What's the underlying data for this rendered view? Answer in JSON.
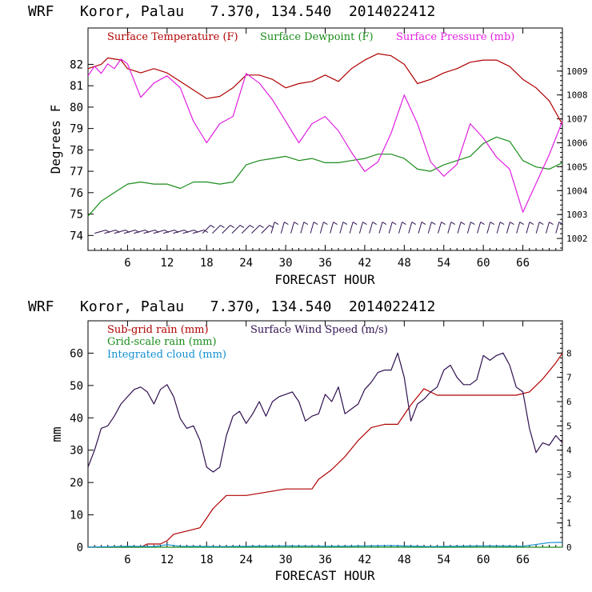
{
  "colors": {
    "temperature": "#b00000",
    "dewpoint": "#1a8c1a",
    "pressure": "#e020e0",
    "wind": "#301050",
    "wind_barbs": "#301050",
    "subgrid_rain": "#b00000",
    "gridscale_rain": "#1a8c1a",
    "cloud": "#1090d0",
    "frame": "#000000"
  },
  "chart_data": [
    {
      "type": "line",
      "title": "WRF   Koror, Palau   7.370, 134.540  2014022412",
      "xlabel": "FORECAST HOUR",
      "ylabel": "Degrees F",
      "xlim": [
        0,
        72
      ],
      "ylim": [
        73.3,
        83.7
      ],
      "xticks": [
        6,
        12,
        18,
        24,
        30,
        36,
        42,
        48,
        54,
        60,
        66
      ],
      "xtick_labels": [
        "6",
        "12",
        "18",
        "24",
        "30",
        "36",
        "42",
        "48",
        "54",
        "60",
        "66"
      ],
      "yticks": [
        74,
        75,
        76,
        77,
        78,
        79,
        80,
        81,
        82
      ],
      "ytick_labels": [
        "74",
        "75",
        "76",
        "77",
        "78",
        "79",
        "80",
        "81",
        "82"
      ],
      "y2label": "",
      "y2lim": [
        1001.5,
        1010.8
      ],
      "y2ticks": [
        1002,
        1003,
        1004,
        1005,
        1006,
        1007,
        1008,
        1009
      ],
      "y2tick_labels": [
        "1002",
        "1003",
        "1004",
        "1005",
        "1006",
        "1007",
        "1008",
        "1009"
      ],
      "legend": [
        "Surface Temperature (F)",
        "Surface Dewpoint (F)",
        "Surface Pressure (mb)"
      ],
      "series": [
        {
          "name": "Surface Temperature (F)",
          "axis": "left",
          "x": [
            0,
            2,
            3,
            5,
            6,
            8,
            10,
            12,
            14,
            16,
            18,
            20,
            22,
            24,
            26,
            28,
            30,
            32,
            34,
            36,
            38,
            40,
            42,
            44,
            46,
            48,
            50,
            52,
            54,
            56,
            58,
            60,
            62,
            64,
            66,
            68,
            70,
            72
          ],
          "values": [
            81.8,
            82.0,
            82.3,
            82.2,
            81.8,
            81.6,
            81.8,
            81.6,
            81.2,
            80.8,
            80.4,
            80.5,
            80.9,
            81.5,
            81.5,
            81.3,
            80.9,
            81.1,
            81.2,
            81.5,
            81.2,
            81.8,
            82.2,
            82.5,
            82.4,
            82.0,
            81.1,
            81.3,
            81.6,
            81.8,
            82.1,
            82.2,
            82.2,
            81.9,
            81.3,
            80.9,
            80.3,
            79.2
          ]
        },
        {
          "name": "Surface Dewpoint (F)",
          "axis": "left",
          "x": [
            0,
            2,
            4,
            6,
            8,
            10,
            12,
            14,
            16,
            18,
            20,
            22,
            24,
            26,
            28,
            30,
            32,
            34,
            36,
            38,
            40,
            42,
            44,
            46,
            48,
            50,
            52,
            54,
            56,
            58,
            60,
            62,
            64,
            66,
            68,
            70,
            72
          ],
          "values": [
            74.9,
            75.6,
            76.0,
            76.4,
            76.5,
            76.4,
            76.4,
            76.2,
            76.5,
            76.5,
            76.4,
            76.5,
            77.3,
            77.5,
            77.6,
            77.7,
            77.5,
            77.6,
            77.4,
            77.4,
            77.5,
            77.6,
            77.8,
            77.8,
            77.6,
            77.1,
            77.0,
            77.3,
            77.5,
            77.7,
            78.3,
            78.6,
            78.4,
            77.5,
            77.2,
            77.1,
            77.4
          ]
        },
        {
          "name": "Surface Pressure (mb)",
          "axis": "right",
          "x": [
            0,
            1,
            2,
            3,
            4,
            5,
            6,
            7,
            8,
            10,
            12,
            14,
            16,
            18,
            20,
            22,
            24,
            26,
            28,
            30,
            32,
            34,
            36,
            38,
            40,
            42,
            44,
            46,
            48,
            50,
            52,
            54,
            56,
            58,
            60,
            62,
            64,
            66,
            68,
            70,
            72
          ],
          "values": [
            1008.8,
            1009.2,
            1008.9,
            1009.3,
            1009.1,
            1009.5,
            1009.3,
            1008.6,
            1007.9,
            1008.5,
            1008.8,
            1008.3,
            1006.9,
            1006.0,
            1006.8,
            1007.1,
            1008.9,
            1008.5,
            1007.8,
            1006.9,
            1006.0,
            1006.8,
            1007.1,
            1006.5,
            1005.6,
            1004.8,
            1005.2,
            1006.4,
            1008.0,
            1006.8,
            1005.2,
            1004.6,
            1005.1,
            1006.8,
            1006.2,
            1005.4,
            1004.9,
            1003.1,
            1004.3,
            1005.5,
            1006.9
          ]
        }
      ],
      "wind_barbs": {
        "y_value": 74.1,
        "count": 48,
        "label": "wind barbs"
      }
    },
    {
      "type": "line",
      "title": "WRF   Koror, Palau   7.370, 134.540  2014022412",
      "xlabel": "FORECAST HOUR",
      "ylabel": "mm",
      "xlim": [
        0,
        72
      ],
      "ylim": [
        0,
        70
      ],
      "xticks": [
        6,
        12,
        18,
        24,
        30,
        36,
        42,
        48,
        54,
        60,
        66
      ],
      "xtick_labels": [
        "6",
        "12",
        "18",
        "24",
        "30",
        "36",
        "42",
        "48",
        "54",
        "60",
        "66"
      ],
      "yticks": [
        0,
        10,
        20,
        30,
        40,
        50,
        60
      ],
      "ytick_labels": [
        "0",
        "10",
        "20",
        "30",
        "40",
        "50",
        "60"
      ],
      "y2lim": [
        0,
        9.33
      ],
      "y2ticks": [
        0,
        1,
        2,
        3,
        4,
        5,
        6,
        7,
        8
      ],
      "y2tick_labels": [
        "0",
        "1",
        "2",
        "3",
        "4",
        "5",
        "6",
        "7",
        "8"
      ],
      "legend": [
        "Sub-grid rain (mm)",
        "Grid-scale rain (mm)",
        "Integrated cloud (mm)",
        "Surface Wind Speed (m/s)"
      ],
      "series": [
        {
          "name": "Sub-grid rain (mm)",
          "axis": "left",
          "x": [
            0,
            8,
            9,
            11,
            12,
            13,
            15,
            17,
            18,
            19,
            21,
            24,
            27,
            30,
            34,
            35,
            37,
            39,
            41,
            43,
            45,
            47,
            49,
            51,
            53,
            55,
            57,
            59,
            61,
            63,
            65,
            67,
            69,
            71,
            72
          ],
          "values": [
            0,
            0,
            1,
            1,
            2,
            4,
            5,
            6,
            9,
            12,
            16,
            16,
            17,
            18,
            18,
            21,
            24,
            28,
            33,
            37,
            38,
            38,
            44,
            49,
            47,
            47,
            47,
            47,
            47,
            47,
            47,
            48,
            52,
            57,
            60
          ]
        },
        {
          "name": "Grid-scale rain (mm)",
          "axis": "left",
          "x": [
            0,
            12,
            24,
            36,
            48,
            60,
            72
          ],
          "values": [
            0,
            0,
            0,
            0,
            0,
            0,
            0
          ]
        },
        {
          "name": "Integrated cloud (mm)",
          "axis": "left",
          "x": [
            0,
            6,
            10,
            12,
            14,
            20,
            30,
            38,
            46,
            52,
            60,
            66,
            70,
            72
          ],
          "values": [
            0,
            0.3,
            0.2,
            0.8,
            0.3,
            0.2,
            0.4,
            0.3,
            0.5,
            0.2,
            0.4,
            0.3,
            1.4,
            1.5
          ]
        },
        {
          "name": "Surface Wind Speed (m/s)",
          "axis": "right",
          "x": [
            0,
            1,
            2,
            3,
            4,
            5,
            6,
            7,
            8,
            9,
            10,
            11,
            12,
            13,
            14,
            15,
            16,
            17,
            18,
            19,
            20,
            21,
            22,
            23,
            24,
            25,
            26,
            27,
            28,
            29,
            30,
            31,
            32,
            33,
            34,
            35,
            36,
            37,
            38,
            39,
            40,
            41,
            42,
            43,
            44,
            45,
            46,
            47,
            48,
            49,
            50,
            51,
            52,
            53,
            54,
            55,
            56,
            57,
            58,
            59,
            60,
            61,
            62,
            63,
            64,
            65,
            66,
            67,
            68,
            69,
            70,
            71,
            72
          ],
          "values": [
            3.3,
            4.0,
            4.9,
            5.0,
            5.4,
            5.9,
            6.2,
            6.5,
            6.6,
            6.4,
            5.9,
            6.5,
            6.7,
            6.2,
            5.3,
            4.9,
            5.0,
            4.4,
            3.3,
            3.1,
            3.3,
            4.6,
            5.4,
            5.6,
            5.1,
            5.5,
            6.0,
            5.4,
            6.0,
            6.2,
            6.3,
            6.4,
            6.0,
            5.2,
            5.4,
            5.5,
            6.3,
            6.0,
            6.6,
            5.5,
            5.7,
            5.9,
            6.5,
            6.8,
            7.2,
            7.3,
            7.3,
            8.0,
            7.0,
            5.2,
            5.9,
            6.1,
            6.4,
            6.6,
            7.3,
            7.5,
            7.0,
            6.7,
            6.7,
            6.9,
            7.9,
            7.7,
            7.9,
            8.0,
            7.5,
            6.6,
            6.4,
            4.9,
            3.9,
            4.3,
            4.2,
            4.6,
            4.3
          ]
        }
      ]
    }
  ]
}
